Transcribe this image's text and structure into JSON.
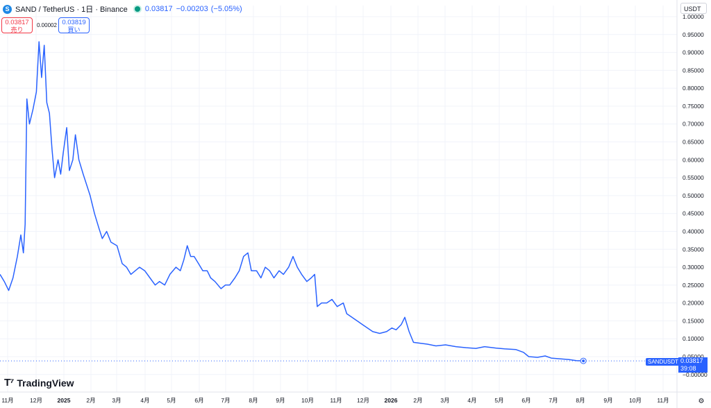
{
  "header": {
    "symbol_badge": "S",
    "title": "SAND / TetherUS · 1日 · Binance",
    "last_price": "0.03817",
    "change": "−0.00203",
    "change_pct": "(−5.05%)"
  },
  "trade_buttons": {
    "sell_price": "0.03817",
    "sell_label": "売り",
    "spread": "0.00002",
    "buy_price": "0.03819",
    "buy_label": "買い"
  },
  "currency_selector": "USDT",
  "brand": "TradingView",
  "current_price_tag": {
    "symbol": "SANDUSDT",
    "price": "0.03817",
    "countdown": "39:08"
  },
  "settings_icon": "gear-icon",
  "colors": {
    "line": "#2962ff",
    "grid": "#f0f3fa",
    "axis_text": "#131722",
    "up": "#089981",
    "down": "#f23645"
  },
  "chart_data": {
    "type": "line",
    "series": [
      {
        "name": "SANDUSDT",
        "values": []
      }
    ],
    "ylim": [
      -0.02,
      1.0
    ],
    "y_ticks": [
      "1.00000",
      "0.95000",
      "0.90000",
      "0.85000",
      "0.80000",
      "0.75000",
      "0.70000",
      "0.65000",
      "0.60000",
      "0.55000",
      "0.50000",
      "0.45000",
      "0.40000",
      "0.35000",
      "0.30000",
      "0.25000",
      "0.20000",
      "0.15000",
      "0.10000",
      "0.05000",
      "0.03817",
      "−0.00000"
    ],
    "x_ticks": [
      "11月",
      "12月",
      "2025",
      "2月",
      "3月",
      "4月",
      "5月",
      "6月",
      "7月",
      "8月",
      "9月",
      "10月",
      "11月",
      "12月",
      "2026",
      "2月",
      "3月",
      "4月",
      "5月",
      "6月",
      "7月",
      "8月",
      "9月",
      "10月",
      "11月"
    ],
    "x_start": "2024-10-10",
    "x_end": "2026-11-30",
    "points": [
      [
        "2024-10-10",
        0.28
      ],
      [
        "2024-10-15",
        0.26
      ],
      [
        "2024-10-20",
        0.235
      ],
      [
        "2024-10-25",
        0.27
      ],
      [
        "2024-10-30",
        0.33
      ],
      [
        "2024-11-03",
        0.39
      ],
      [
        "2024-11-06",
        0.34
      ],
      [
        "2024-11-08",
        0.42
      ],
      [
        "2024-11-10",
        0.77
      ],
      [
        "2024-11-13",
        0.7
      ],
      [
        "2024-11-17",
        0.74
      ],
      [
        "2024-11-21",
        0.79
      ],
      [
        "2024-11-24",
        0.93
      ],
      [
        "2024-11-27",
        0.83
      ],
      [
        "2024-11-30",
        0.92
      ],
      [
        "2024-12-03",
        0.76
      ],
      [
        "2024-12-06",
        0.73
      ],
      [
        "2024-12-09",
        0.63
      ],
      [
        "2024-12-12",
        0.55
      ],
      [
        "2024-12-16",
        0.6
      ],
      [
        "2024-12-19",
        0.56
      ],
      [
        "2024-12-22",
        0.62
      ],
      [
        "2024-12-26",
        0.69
      ],
      [
        "2024-12-29",
        0.57
      ],
      [
        "2025-01-02",
        0.6
      ],
      [
        "2025-01-05",
        0.67
      ],
      [
        "2025-01-09",
        0.6
      ],
      [
        "2025-01-14",
        0.56
      ],
      [
        "2025-01-18",
        0.53
      ],
      [
        "2025-01-22",
        0.5
      ],
      [
        "2025-01-27",
        0.45
      ],
      [
        "2025-02-01",
        0.41
      ],
      [
        "2025-02-05",
        0.38
      ],
      [
        "2025-02-10",
        0.4
      ],
      [
        "2025-02-15",
        0.37
      ],
      [
        "2025-02-22",
        0.36
      ],
      [
        "2025-02-28",
        0.31
      ],
      [
        "2025-03-05",
        0.3
      ],
      [
        "2025-03-10",
        0.28
      ],
      [
        "2025-03-15",
        0.29
      ],
      [
        "2025-03-20",
        0.3
      ],
      [
        "2025-03-26",
        0.29
      ],
      [
        "2025-04-01",
        0.27
      ],
      [
        "2025-04-07",
        0.25
      ],
      [
        "2025-04-12",
        0.26
      ],
      [
        "2025-04-18",
        0.25
      ],
      [
        "2025-04-24",
        0.28
      ],
      [
        "2025-05-01",
        0.3
      ],
      [
        "2025-05-06",
        0.29
      ],
      [
        "2025-05-10",
        0.32
      ],
      [
        "2025-05-14",
        0.36
      ],
      [
        "2025-05-18",
        0.33
      ],
      [
        "2025-05-22",
        0.33
      ],
      [
        "2025-05-27",
        0.31
      ],
      [
        "2025-06-01",
        0.29
      ],
      [
        "2025-06-06",
        0.29
      ],
      [
        "2025-06-10",
        0.27
      ],
      [
        "2025-06-15",
        0.26
      ],
      [
        "2025-06-22",
        0.24
      ],
      [
        "2025-06-27",
        0.25
      ],
      [
        "2025-07-02",
        0.25
      ],
      [
        "2025-07-08",
        0.27
      ],
      [
        "2025-07-13",
        0.29
      ],
      [
        "2025-07-18",
        0.33
      ],
      [
        "2025-07-23",
        0.34
      ],
      [
        "2025-07-27",
        0.29
      ],
      [
        "2025-08-02",
        0.29
      ],
      [
        "2025-08-07",
        0.27
      ],
      [
        "2025-08-12",
        0.3
      ],
      [
        "2025-08-17",
        0.29
      ],
      [
        "2025-08-22",
        0.27
      ],
      [
        "2025-08-28",
        0.29
      ],
      [
        "2025-09-02",
        0.28
      ],
      [
        "2025-09-08",
        0.3
      ],
      [
        "2025-09-13",
        0.33
      ],
      [
        "2025-09-18",
        0.3
      ],
      [
        "2025-09-23",
        0.28
      ],
      [
        "2025-09-29",
        0.26
      ],
      [
        "2025-10-04",
        0.27
      ],
      [
        "2025-10-08",
        0.28
      ],
      [
        "2025-10-11",
        0.19
      ],
      [
        "2025-10-16",
        0.2
      ],
      [
        "2025-10-22",
        0.2
      ],
      [
        "2025-10-28",
        0.21
      ],
      [
        "2025-11-03",
        0.19
      ],
      [
        "2025-11-10",
        0.2
      ],
      [
        "2025-11-14",
        0.17
      ],
      [
        "2025-11-20",
        0.16
      ],
      [
        "2025-11-26",
        0.15
      ],
      [
        "2025-12-02",
        0.14
      ],
      [
        "2025-12-08",
        0.13
      ],
      [
        "2025-12-14",
        0.12
      ],
      [
        "2025-12-22",
        0.115
      ],
      [
        "2025-12-30",
        0.12
      ],
      [
        "2026-01-05",
        0.13
      ],
      [
        "2026-01-10",
        0.125
      ],
      [
        "2026-01-16",
        0.14
      ],
      [
        "2026-01-20",
        0.16
      ],
      [
        "2026-01-25",
        0.12
      ],
      [
        "2026-01-30",
        0.09
      ],
      [
        "2026-02-05",
        0.088
      ],
      [
        "2026-02-15",
        0.085
      ],
      [
        "2026-02-25",
        0.08
      ],
      [
        "2026-03-08",
        0.083
      ],
      [
        "2026-03-20",
        0.078
      ],
      [
        "2026-04-01",
        0.075
      ],
      [
        "2026-04-12",
        0.073
      ],
      [
        "2026-04-22",
        0.078
      ],
      [
        "2026-05-05",
        0.074
      ],
      [
        "2026-05-15",
        0.072
      ],
      [
        "2026-05-28",
        0.07
      ],
      [
        "2026-06-06",
        0.062
      ],
      [
        "2026-06-12",
        0.05
      ],
      [
        "2026-06-22",
        0.048
      ],
      [
        "2026-07-01",
        0.052
      ],
      [
        "2026-07-08",
        0.046
      ],
      [
        "2026-07-18",
        0.044
      ],
      [
        "2026-07-28",
        0.042
      ],
      [
        "2026-08-06",
        0.039
      ],
      [
        "2026-08-14",
        0.03817
      ]
    ]
  }
}
